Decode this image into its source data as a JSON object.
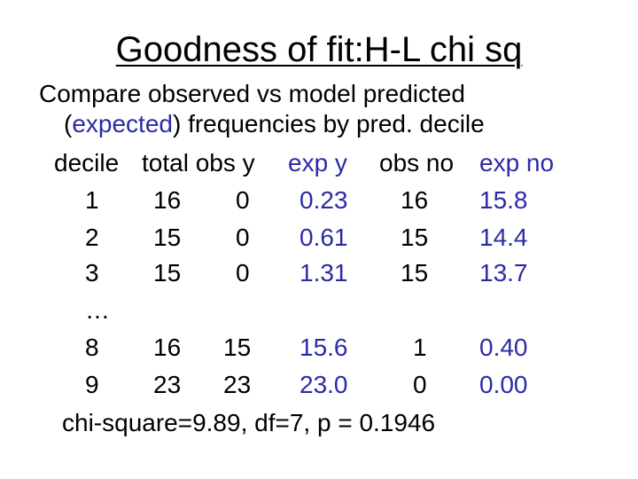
{
  "title": "Goodness of fit:H-L chi sq",
  "intro": {
    "line1": "Compare observed vs model predicted",
    "line2_open": "(",
    "line2_blue": "expected",
    "line2_rest": ") frequencies by pred. decile"
  },
  "table": {
    "headers": {
      "decile": "decile",
      "total_obs_y": "total obs y",
      "exp_y": "exp y",
      "obs_no": "obs no",
      "exp_no": "exp no"
    },
    "rows": [
      {
        "decile": "1",
        "total": "16",
        "obs_y": "0",
        "exp_y": "0.23",
        "obs_no": "16",
        "exp_no": "15.8"
      },
      {
        "decile": "2",
        "total": "15",
        "obs_y": "0",
        "exp_y": "0.61",
        "obs_no": "15",
        "exp_no": "14.4"
      },
      {
        "decile": "3",
        "total": "15",
        "obs_y": "0",
        "exp_y": "1.31",
        "obs_no": "15",
        "exp_no": "13.7"
      },
      {
        "decile": "…"
      },
      {
        "decile": "8",
        "total": "16",
        "obs_y": "15",
        "exp_y": "15.6",
        "obs_no": "1",
        "exp_no": "0.40"
      },
      {
        "decile": "9",
        "total": "23",
        "obs_y": "23",
        "exp_y": "23.0",
        "obs_no": "0",
        "exp_no": "0.00"
      }
    ]
  },
  "footer": "chi-square=9.89, df=7, p = 0.1946",
  "colors": {
    "text": "#000000",
    "expected": "#2b2ba6"
  }
}
